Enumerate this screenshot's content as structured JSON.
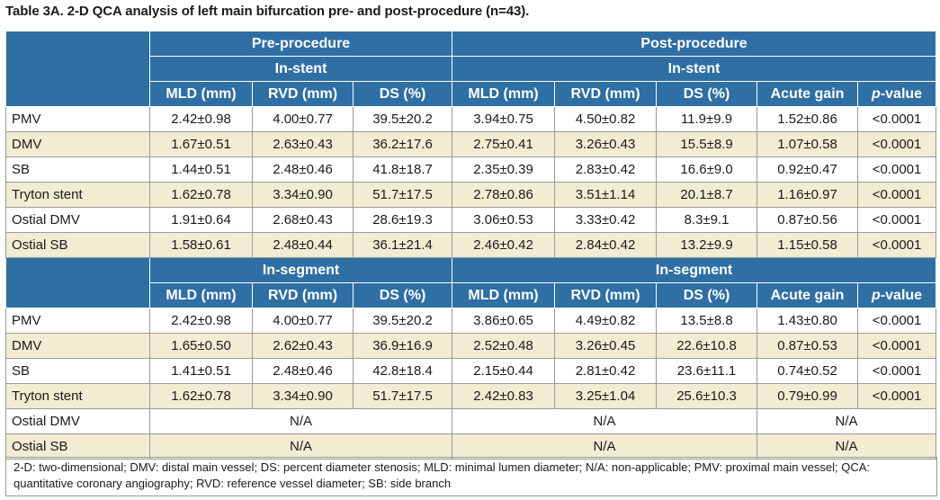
{
  "title": "Table 3A. 2-D QCA analysis of left main bifurcation pre- and post-procedure (n=43).",
  "group_headers": {
    "pre": "Pre-procedure",
    "post": "Post-procedure",
    "in_stent": "In-stent",
    "in_segment": "In-segment"
  },
  "columns": {
    "mld": "MLD (mm)",
    "rvd": "RVD (mm)",
    "ds": "DS (%)",
    "acute_gain": "Acute gain",
    "p_italic": "p",
    "p_suffix": "-value"
  },
  "in_stent_rows": [
    {
      "label": "PMV",
      "pre_mld": "2.42±0.98",
      "pre_rvd": "4.00±0.77",
      "pre_ds": "39.5±20.2",
      "post_mld": "3.94±0.75",
      "post_rvd": "4.50±0.82",
      "post_ds": "11.9±9.9",
      "gain": "1.52±0.86",
      "p": "<0.0001"
    },
    {
      "label": "DMV",
      "pre_mld": "1.67±0.51",
      "pre_rvd": "2.63±0.43",
      "pre_ds": "36.2±17.6",
      "post_mld": "2.75±0.41",
      "post_rvd": "3.26±0.43",
      "post_ds": "15.5±8.9",
      "gain": "1.07±0.58",
      "p": "<0.0001"
    },
    {
      "label": "SB",
      "pre_mld": "1.44±0.51",
      "pre_rvd": "2.48±0.46",
      "pre_ds": "41.8±18.7",
      "post_mld": "2.35±0.39",
      "post_rvd": "2.83±0.42",
      "post_ds": "16.6±9.0",
      "gain": "0.92±0.47",
      "p": "<0.0001"
    },
    {
      "label": "Tryton stent",
      "pre_mld": "1.62±0.78",
      "pre_rvd": "3.34±0.90",
      "pre_ds": "51.7±17.5",
      "post_mld": "2.78±0.86",
      "post_rvd": "3.51±1.14",
      "post_ds": "20.1±8.7",
      "gain": "1.16±0.97",
      "p": "<0.0001"
    },
    {
      "label": "Ostial DMV",
      "pre_mld": "1.91±0.64",
      "pre_rvd": "2.68±0.43",
      "pre_ds": "28.6±19.3",
      "post_mld": "3.06±0.53",
      "post_rvd": "3.33±0.42",
      "post_ds": "8.3±9.1",
      "gain": "0.87±0.56",
      "p": "<0.0001"
    },
    {
      "label": "Ostial SB",
      "pre_mld": "1.58±0.61",
      "pre_rvd": "2.48±0.44",
      "pre_ds": "36.1±21.4",
      "post_mld": "2.46±0.42",
      "post_rvd": "2.84±0.42",
      "post_ds": "13.2±9.9",
      "gain": "1.15±0.58",
      "p": "<0.0001"
    }
  ],
  "in_segment_rows": [
    {
      "label": "PMV",
      "pre_mld": "2.42±0.98",
      "pre_rvd": "4.00±0.77",
      "pre_ds": "39.5±20.2",
      "post_mld": "3.86±0.65",
      "post_rvd": "4.49±0.82",
      "post_ds": "13.5±8.8",
      "gain": "1.43±0.80",
      "p": "<0.0001"
    },
    {
      "label": "DMV",
      "pre_mld": "1.65±0.50",
      "pre_rvd": "2.62±0.43",
      "pre_ds": "36.9±16.9",
      "post_mld": "2.52±0.48",
      "post_rvd": "3.26±0.45",
      "post_ds": "22.6±10.8",
      "gain": "0.87±0.53",
      "p": "<0.0001"
    },
    {
      "label": "SB",
      "pre_mld": "1.41±0.51",
      "pre_rvd": "2.48±0.46",
      "pre_ds": "42.8±18.4",
      "post_mld": "2.15±0.44",
      "post_rvd": "2.81±0.42",
      "post_ds": "23.6±11.1",
      "gain": "0.74±0.52",
      "p": "<0.0001"
    },
    {
      "label": "Tryton stent",
      "pre_mld": "1.62±0.78",
      "pre_rvd": "3.34±0.90",
      "pre_ds": "51.7±17.5",
      "post_mld": "2.42±0.83",
      "post_rvd": "3.25±1.04",
      "post_ds": "25.6±10.3",
      "gain": "0.79±0.99",
      "p": "<0.0001"
    }
  ],
  "na_rows": [
    {
      "label": "Ostial DMV",
      "pre": "N/A",
      "post": "N/A",
      "gain_p": "N/A"
    },
    {
      "label": "Ostial SB",
      "pre": "N/A",
      "post": "N/A",
      "gain_p": "N/A"
    }
  ],
  "footnote": "2-D: two-dimensional; DMV: distal main vessel; DS: percent diameter stenosis; MLD: minimal lumen diameter; N/A: non-applicable; PMV: proximal main vessel; QCA: quantitative coronary angiography; RVD: reference vessel diameter; SB: side branch"
}
